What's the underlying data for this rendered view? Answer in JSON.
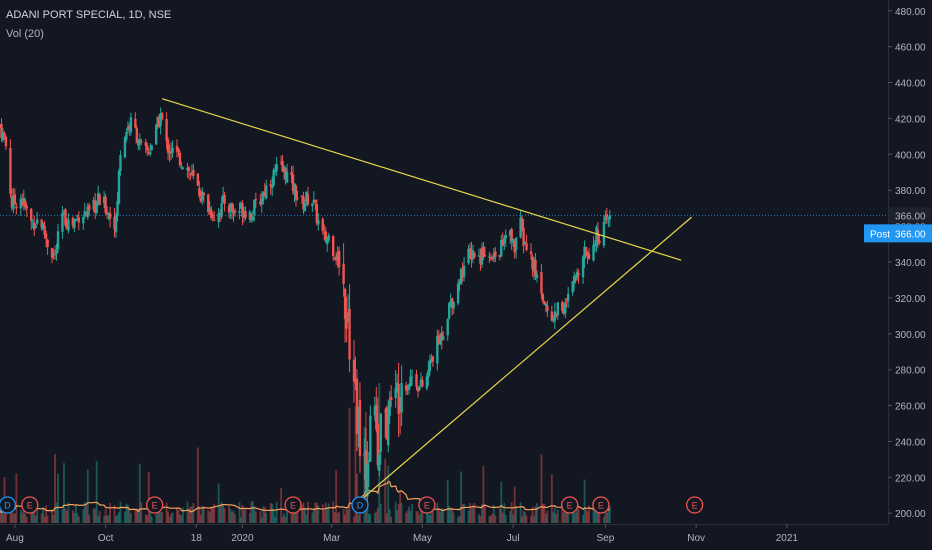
{
  "header": {
    "symbol_line": "ADANI PORT SPECIAL, 1D, NSE",
    "indicator_line": "Vol (20)"
  },
  "chart_data": {
    "type": "candlestick",
    "title": "ADANI PORT SPECIAL, 1D, NSE",
    "y_range": [
      194,
      486
    ],
    "y_tick_labels": [
      "480.00",
      "460.00",
      "440.00",
      "420.00",
      "400.00",
      "380.00",
      "360.00",
      "340.00",
      "320.00",
      "300.00",
      "280.00",
      "260.00",
      "240.00",
      "220.00",
      "200.00"
    ],
    "y_ticks": [
      480,
      460,
      440,
      420,
      400,
      380,
      360,
      340,
      320,
      300,
      280,
      260,
      240,
      220,
      200
    ],
    "x_tick_labels": [
      "Aug",
      "Oct",
      "18",
      "2020",
      "Mar",
      "May",
      "Jul",
      "Sep",
      "Nov",
      "2021"
    ],
    "x_ticks": [
      "2019-08-01",
      "2019-10-01",
      "2019-12-01",
      "2020-01-01",
      "2020-03-01",
      "2020-05-01",
      "2020-07-01",
      "2020-09-01",
      "2020-11-01",
      "2021-01-01"
    ],
    "x_range": [
      "2019-07-22",
      "2021-03-10"
    ],
    "last_price": 366.0,
    "last_price_label": "366.00",
    "post_label": "Post",
    "post_price_label": "366.00",
    "close_path": [
      [
        "2019-07-22",
        416
      ],
      [
        "2019-07-26",
        405
      ],
      [
        "2019-07-30",
        372
      ],
      [
        "2019-08-05",
        376
      ],
      [
        "2019-08-12",
        362
      ],
      [
        "2019-08-18",
        364
      ],
      [
        "2019-08-24",
        348
      ],
      [
        "2019-08-28",
        343
      ],
      [
        "2019-09-02",
        366
      ],
      [
        "2019-09-08",
        360
      ],
      [
        "2019-09-14",
        368
      ],
      [
        "2019-09-20",
        366
      ],
      [
        "2019-09-26",
        374
      ],
      [
        "2019-10-01",
        371
      ],
      [
        "2019-10-04",
        366
      ],
      [
        "2019-10-08",
        362
      ],
      [
        "2019-10-11",
        402
      ],
      [
        "2019-10-15",
        414
      ],
      [
        "2019-10-19",
        418
      ],
      [
        "2019-10-23",
        408
      ],
      [
        "2019-10-26",
        400
      ],
      [
        "2019-10-30",
        402
      ],
      [
        "2019-11-03",
        410
      ],
      [
        "2019-11-07",
        422
      ],
      [
        "2019-11-11",
        405
      ],
      [
        "2019-11-17",
        400
      ],
      [
        "2019-11-24",
        394
      ],
      [
        "2019-12-01",
        382
      ],
      [
        "2019-12-08",
        372
      ],
      [
        "2019-12-14",
        365
      ],
      [
        "2019-12-20",
        374
      ],
      [
        "2019-12-26",
        368
      ],
      [
        "2020-01-01",
        370
      ],
      [
        "2020-01-07",
        367
      ],
      [
        "2020-01-13",
        375
      ],
      [
        "2020-01-19",
        385
      ],
      [
        "2020-01-25",
        392
      ],
      [
        "2020-01-30",
        390
      ],
      [
        "2020-02-04",
        382
      ],
      [
        "2020-02-10",
        372
      ],
      [
        "2020-02-16",
        378
      ],
      [
        "2020-02-21",
        362
      ],
      [
        "2020-02-25",
        352
      ],
      [
        "2020-02-28",
        354
      ],
      [
        "2020-03-03",
        346
      ],
      [
        "2020-03-07",
        338
      ],
      [
        "2020-03-10",
        320
      ],
      [
        "2020-03-13",
        295
      ],
      [
        "2020-03-16",
        270
      ],
      [
        "2020-03-19",
        250
      ],
      [
        "2020-03-22",
        216
      ],
      [
        "2020-03-25",
        230
      ],
      [
        "2020-03-28",
        250
      ],
      [
        "2020-04-01",
        240
      ],
      [
        "2020-04-05",
        246
      ],
      [
        "2020-04-09",
        256
      ],
      [
        "2020-04-13",
        264
      ],
      [
        "2020-04-17",
        275
      ],
      [
        "2020-04-21",
        272
      ],
      [
        "2020-04-25",
        278
      ],
      [
        "2020-04-29",
        270
      ],
      [
        "2020-05-03",
        272
      ],
      [
        "2020-05-07",
        286
      ],
      [
        "2020-05-11",
        294
      ],
      [
        "2020-05-15",
        302
      ],
      [
        "2020-05-19",
        316
      ],
      [
        "2020-05-23",
        322
      ],
      [
        "2020-05-27",
        334
      ],
      [
        "2020-05-31",
        342
      ],
      [
        "2020-06-04",
        346
      ],
      [
        "2020-06-08",
        342
      ],
      [
        "2020-06-12",
        348
      ],
      [
        "2020-06-16",
        340
      ],
      [
        "2020-06-20",
        344
      ],
      [
        "2020-06-24",
        350
      ],
      [
        "2020-06-28",
        356
      ],
      [
        "2020-07-02",
        348
      ],
      [
        "2020-07-05",
        364
      ],
      [
        "2020-07-08",
        352
      ],
      [
        "2020-07-12",
        344
      ],
      [
        "2020-07-16",
        334
      ],
      [
        "2020-07-20",
        324
      ],
      [
        "2020-07-24",
        312
      ],
      [
        "2020-07-28",
        308
      ],
      [
        "2020-08-01",
        318
      ],
      [
        "2020-08-05",
        314
      ],
      [
        "2020-08-09",
        324
      ],
      [
        "2020-08-13",
        332
      ],
      [
        "2020-08-17",
        348
      ],
      [
        "2020-08-21",
        346
      ],
      [
        "2020-08-25",
        354
      ],
      [
        "2020-08-29",
        356
      ],
      [
        "2020-09-02",
        362
      ],
      [
        "2020-09-05",
        366
      ]
    ],
    "event_markers": [
      {
        "label": "D",
        "date": "2019-07-27"
      },
      {
        "label": "E",
        "date": "2019-08-11"
      },
      {
        "label": "E",
        "date": "2019-11-03"
      },
      {
        "label": "E",
        "date": "2020-02-04"
      },
      {
        "label": "D",
        "date": "2020-03-20"
      },
      {
        "label": "E",
        "date": "2020-05-04"
      },
      {
        "label": "E",
        "date": "2020-08-08"
      },
      {
        "label": "E",
        "date": "2020-08-29"
      },
      {
        "label": "E",
        "date": "2020-10-31"
      }
    ],
    "trendlines": [
      {
        "name": "",
        "from": [
          "2019-11-08",
          431
        ],
        "to": [
          "2020-10-22",
          341
        ]
      },
      {
        "name": "",
        "from": [
          "2020-03-20",
          207
        ],
        "to": [
          "2020-10-29",
          365
        ]
      }
    ],
    "indicator": "Vol (20)",
    "grid": false,
    "colors": {
      "background": "#131722",
      "up": "#26a69a",
      "down": "#ef5350",
      "trendline": "#e6d84a",
      "volume_ma": "#f7a35c",
      "price_line": "#2196f3",
      "axis_text": "#b2b5be",
      "event_marker_d": "#2196f3",
      "event_marker_e": "#ef5350"
    }
  }
}
